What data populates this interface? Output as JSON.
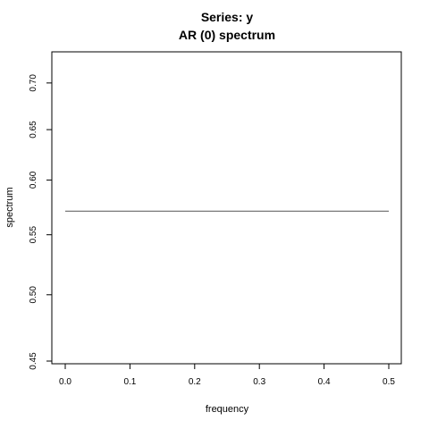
{
  "chart_data": {
    "type": "line",
    "title": "Series: y",
    "subtitle": "AR (0) spectrum",
    "xlabel": "frequency",
    "ylabel": "spectrum",
    "x_ticks": [
      "0.0",
      "0.1",
      "0.2",
      "0.3",
      "0.4",
      "0.5"
    ],
    "y_ticks": [
      "0.45",
      "0.50",
      "0.55",
      "0.60",
      "0.65",
      "0.70"
    ],
    "log_y": true,
    "xlim": [
      0,
      0.5
    ],
    "ylim": [
      0.45,
      0.72
    ],
    "grid": false,
    "series": [
      {
        "x": [
          0.0,
          0.5
        ],
        "y": [
          0.571,
          0.571
        ],
        "color": "#555555"
      }
    ]
  }
}
